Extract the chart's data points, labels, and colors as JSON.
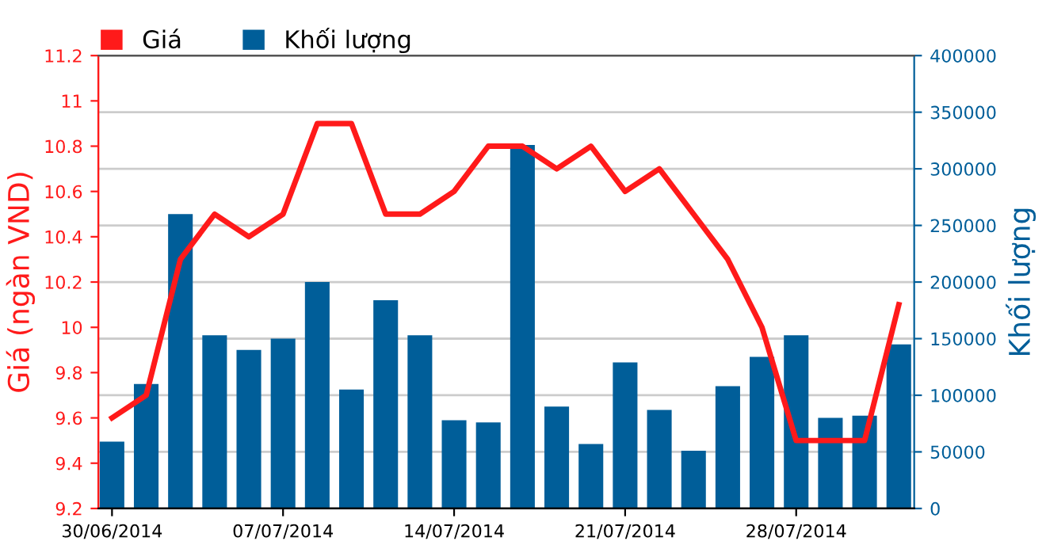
{
  "chart_data": {
    "type": "bar",
    "categories": [
      "30/06/2014",
      null,
      null,
      null,
      null,
      "07/07/2014",
      null,
      null,
      null,
      null,
      "14/07/2014",
      null,
      null,
      null,
      null,
      "21/07/2014",
      null,
      null,
      null,
      null,
      "28/07/2014",
      null,
      null,
      null
    ],
    "series": [
      {
        "name": "Khối lượng",
        "axis": "y2",
        "color": "#005e99",
        "values": [
          59000,
          110000,
          260000,
          153000,
          140000,
          150000,
          200000,
          105000,
          184000,
          153000,
          78000,
          76000,
          321000,
          90000,
          57000,
          129000,
          87000,
          51000,
          108000,
          134000,
          153000,
          80000,
          82000,
          145000
        ]
      },
      {
        "name": "Giá",
        "type": "line",
        "color": "#ff1a1a",
        "values": [
          9.6,
          9.7,
          10.3,
          10.5,
          10.4,
          10.5,
          10.9,
          10.9,
          10.5,
          10.5,
          10.6,
          10.8,
          10.8,
          10.7,
          10.8,
          10.6,
          10.7,
          10.5,
          10.3,
          10.0,
          9.5,
          9.5,
          9.5,
          10.1
        ]
      }
    ],
    "ylabel": "Giá (ngàn VND)",
    "y2label": "Khối lượng",
    "ylim": [
      9.2,
      11.2
    ],
    "yticks": [
      9.2,
      9.4,
      9.6,
      9.8,
      10,
      10.2,
      10.4,
      10.6,
      10.8,
      11,
      11.2
    ],
    "y2lim": [
      0,
      400000
    ],
    "y2ticks": [
      0,
      50000,
      100000,
      150000,
      200000,
      250000,
      300000,
      350000,
      400000
    ],
    "grid": "y",
    "legend": "top left",
    "marker": "none",
    "line_style": "solid"
  }
}
